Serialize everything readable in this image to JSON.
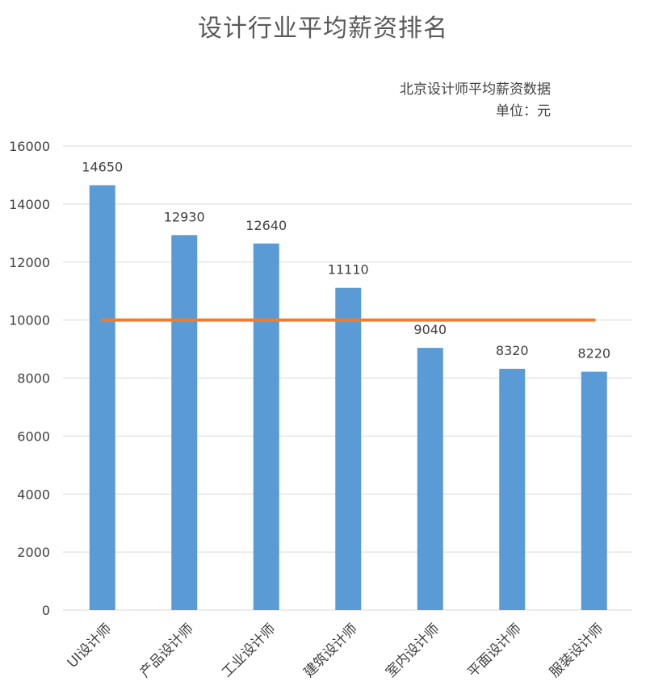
{
  "chart_data": {
    "type": "bar",
    "title": "设计行业平均薪资排名",
    "subtitle_lines": [
      "北京设计师平均薪资数据",
      "单位：元"
    ],
    "categories": [
      "UI设计师",
      "产品设计师",
      "工业设计师",
      "建筑设计师",
      "室内设计师",
      "平面设计师",
      "服装设计师"
    ],
    "values": [
      14650,
      12930,
      12640,
      11110,
      9040,
      8320,
      8220
    ],
    "data_labels": [
      "14650",
      "12930",
      "12640",
      "11110",
      "9040",
      "8320",
      "8220"
    ],
    "ylim": [
      0,
      16000
    ],
    "yticks": [
      0,
      2000,
      4000,
      6000,
      8000,
      10000,
      12000,
      14000,
      16000
    ],
    "ytick_labels": [
      "0",
      "2000",
      "4000",
      "6000",
      "8000",
      "10000",
      "12000",
      "14000",
      "16000"
    ],
    "reference_line": {
      "value": 10000
    },
    "grid": true,
    "colors": {
      "bar": "#5b9bd5",
      "reference_line": "#ed7d31",
      "grid": "#d9d9d9"
    }
  }
}
